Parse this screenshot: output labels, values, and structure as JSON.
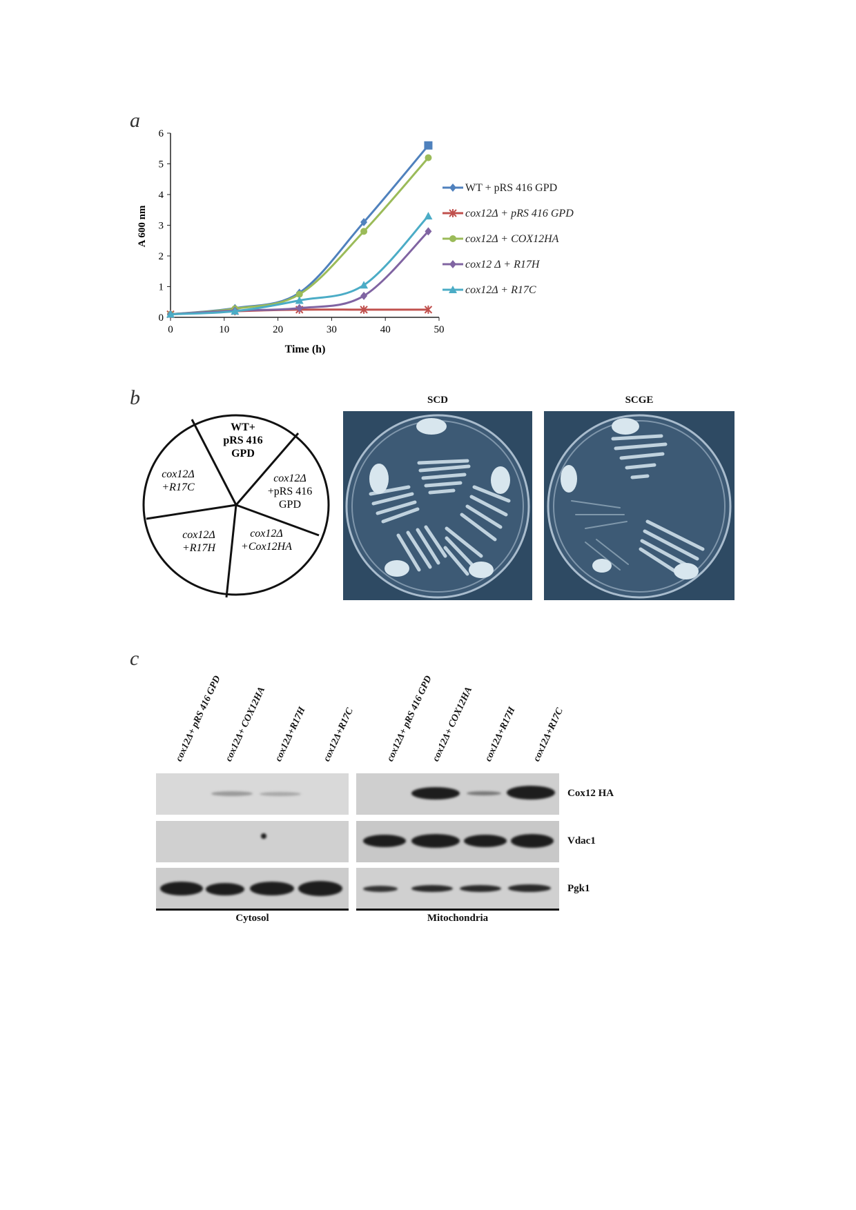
{
  "panels": {
    "a": "a",
    "b": "b",
    "c": "c"
  },
  "chart_data": {
    "type": "line",
    "xlabel": "Time (h)",
    "ylabel": "A 600 nm",
    "xlim": [
      0,
      50
    ],
    "ylim": [
      0,
      6
    ],
    "xticks": [
      0,
      10,
      20,
      30,
      40,
      50
    ],
    "yticks": [
      0,
      1,
      2,
      3,
      4,
      5,
      6
    ],
    "legend_position": "right",
    "series": [
      {
        "name": "WT + pRS 416 GPD",
        "color": "#4f81bd",
        "marker": "diamond",
        "x": [
          0,
          12,
          24,
          36,
          48
        ],
        "y": [
          0.1,
          0.3,
          0.8,
          3.1,
          5.6
        ]
      },
      {
        "name": "cox12Δ + pRS 416 GPD",
        "color": "#c0504d",
        "marker": "star",
        "x": [
          0,
          12,
          24,
          36,
          48
        ],
        "y": [
          0.1,
          0.2,
          0.25,
          0.25,
          0.25
        ]
      },
      {
        "name": "cox12Δ + COX12HA",
        "color": "#9bbb59",
        "marker": "circle",
        "x": [
          0,
          12,
          24,
          36,
          48
        ],
        "y": [
          0.1,
          0.28,
          0.75,
          2.8,
          5.2
        ]
      },
      {
        "name": "cox12 Δ + R17H",
        "color": "#8064a2",
        "marker": "diamond",
        "x": [
          0,
          12,
          24,
          36,
          48
        ],
        "y": [
          0.1,
          0.22,
          0.3,
          0.7,
          2.8
        ]
      },
      {
        "name": "cox12Δ + R17C",
        "color": "#4bacc6",
        "marker": "triangle",
        "x": [
          0,
          12,
          24,
          36,
          48
        ],
        "y": [
          0.1,
          0.2,
          0.55,
          1.05,
          3.3
        ]
      }
    ]
  },
  "pie": {
    "sectors": [
      {
        "lines": [
          "WT+",
          "pRS 416",
          "GPD"
        ],
        "italic": false
      },
      {
        "lines": [
          "cox12Δ",
          "+pRS 416",
          "GPD"
        ],
        "italic": true
      },
      {
        "lines": [
          "cox12Δ",
          "+Cox12HA"
        ],
        "italic": true
      },
      {
        "lines": [
          "cox12Δ",
          "+R17H"
        ],
        "italic": true
      },
      {
        "lines": [
          "cox12Δ",
          "+R17C"
        ],
        "italic": true
      }
    ]
  },
  "plates": {
    "scd_title": "SCD",
    "scge_title": "SCGE"
  },
  "blot": {
    "lanes": [
      "cox12Δ+ pRS 416 GPD",
      "cox12Δ+ COX12HA",
      "cox12Δ+R17H",
      "cox12Δ+R17C",
      "cox12Δ+ pRS 416 GPD",
      "cox12Δ+ COX12HA",
      "cox12Δ+R17H",
      "cox12Δ+R17C"
    ],
    "rows": [
      "Cox12 HA",
      "Vdac1",
      "Pgk1"
    ],
    "fractions": [
      "Cytosol",
      "Mitochondria"
    ]
  }
}
